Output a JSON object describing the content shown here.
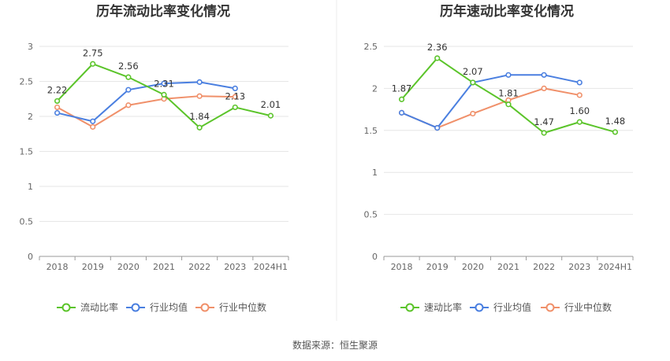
{
  "source": "数据来源：恒生聚源",
  "colors": {
    "primary": "#5bc42a",
    "avg": "#4a7fe0",
    "median": "#f0906a",
    "grid": "#e6e6e6",
    "axis": "#999999"
  },
  "chart_data": [
    {
      "type": "line",
      "title": "历年流动比率变化情况",
      "categories": [
        "2018",
        "2019",
        "2020",
        "2021",
        "2022",
        "2023",
        "2024H1"
      ],
      "ylim": [
        0,
        3
      ],
      "yticks": [
        "0",
        "0.5",
        "1",
        "1.5",
        "2",
        "2.5",
        "3"
      ],
      "grid": true,
      "legend_position": "bottom",
      "series": [
        {
          "name": "流动比率",
          "values": [
            2.22,
            2.75,
            2.56,
            2.31,
            1.84,
            2.13,
            2.01
          ],
          "labels": [
            "2.22",
            "2.75",
            "2.56",
            "2.31",
            "1.84",
            "2.13",
            "2.01"
          ]
        },
        {
          "name": "行业均值",
          "values": [
            2.05,
            1.93,
            2.38,
            2.47,
            2.49,
            2.4,
            null
          ]
        },
        {
          "name": "行业中位数",
          "values": [
            2.13,
            1.85,
            2.16,
            2.25,
            2.29,
            2.28,
            null
          ]
        }
      ]
    },
    {
      "type": "line",
      "title": "历年速动比率变化情况",
      "categories": [
        "2018",
        "2019",
        "2020",
        "2021",
        "2022",
        "2023",
        "2024H1"
      ],
      "ylim": [
        0,
        2.5
      ],
      "yticks": [
        "0",
        "0.5",
        "1",
        "1.5",
        "2",
        "2.5"
      ],
      "grid": true,
      "legend_position": "bottom",
      "series": [
        {
          "name": "速动比率",
          "values": [
            1.87,
            2.36,
            2.07,
            1.81,
            1.47,
            1.6,
            1.48
          ],
          "labels": [
            "1.87",
            "2.36",
            "2.07",
            "1.81",
            "1.47",
            "1.60",
            "1.48"
          ]
        },
        {
          "name": "行业均值",
          "values": [
            1.71,
            1.53,
            2.07,
            2.16,
            2.16,
            2.07,
            null
          ]
        },
        {
          "name": "行业中位数",
          "values": [
            1.71,
            1.53,
            1.7,
            1.86,
            2.0,
            1.92,
            null
          ]
        }
      ]
    }
  ]
}
